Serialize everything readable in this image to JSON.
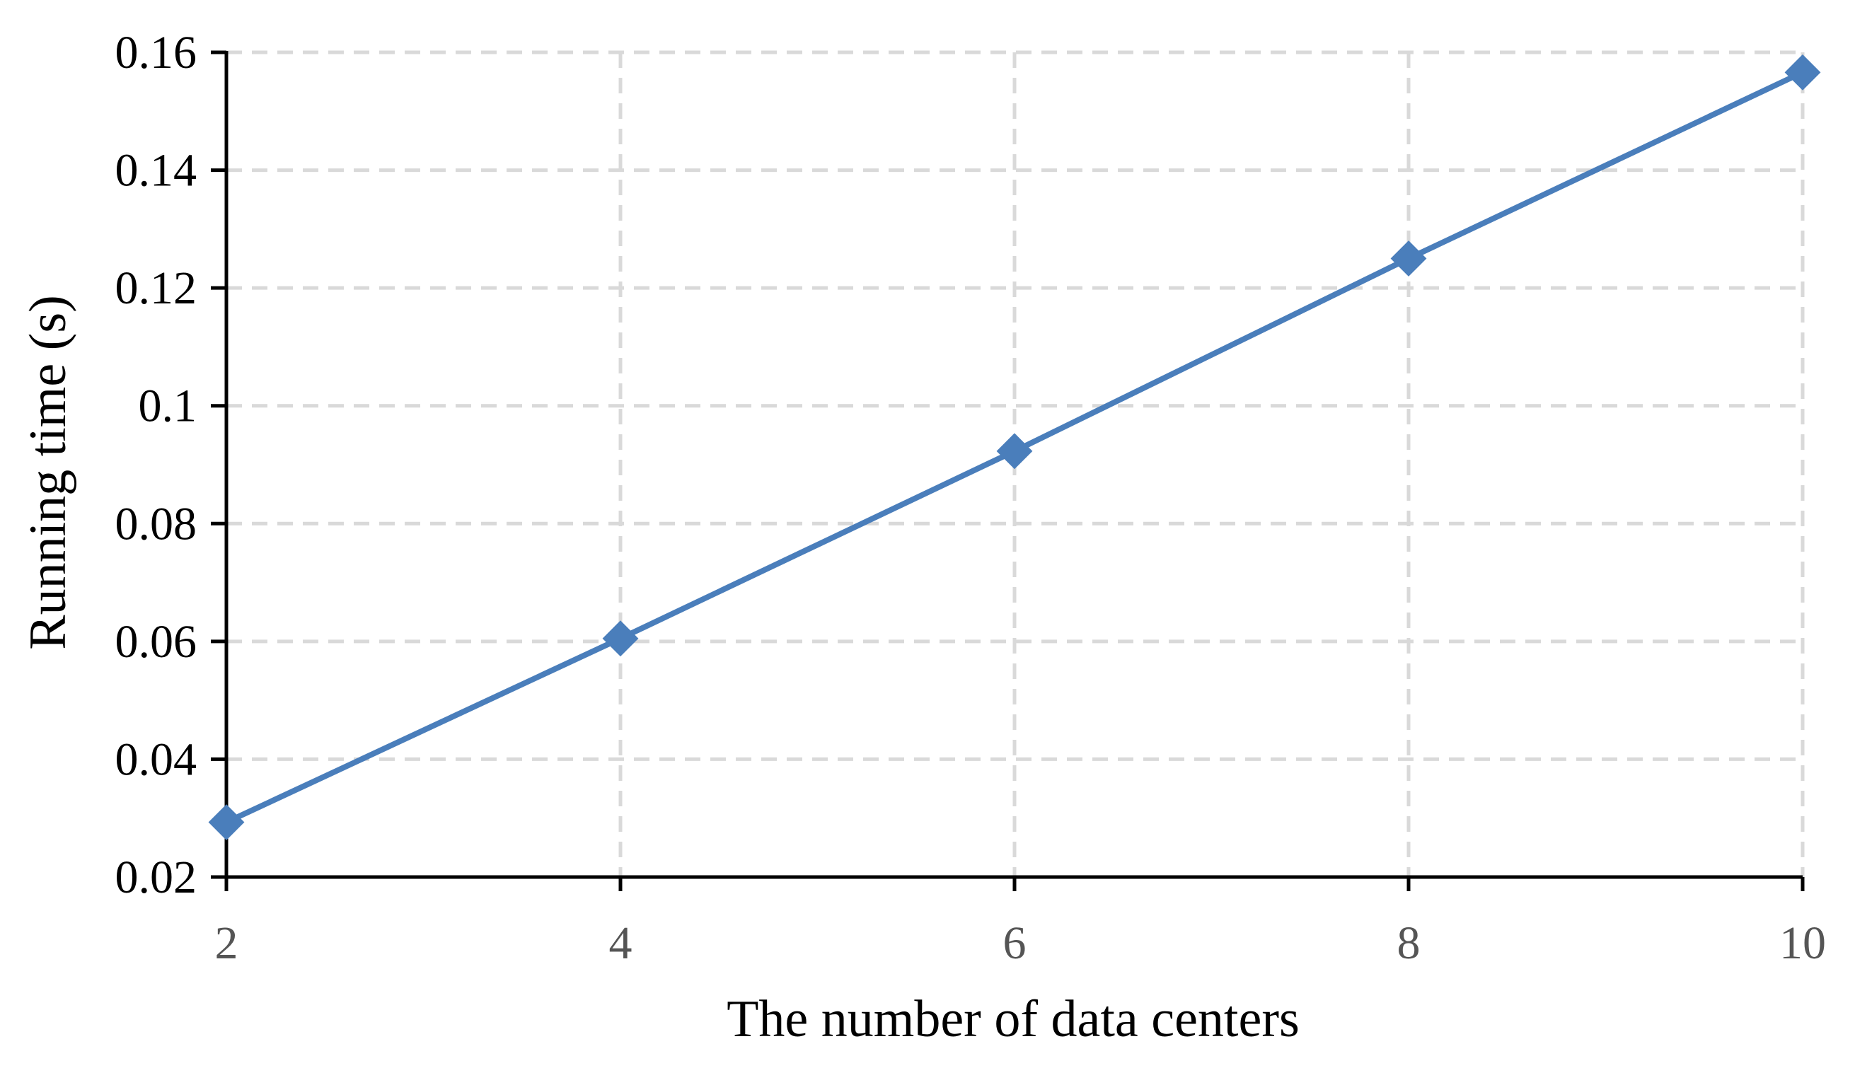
{
  "chart_data": {
    "type": "line",
    "title": "",
    "xlabel": "The number of data centers",
    "ylabel": "Running time (s)",
    "x": [
      2,
      4,
      6,
      8,
      10
    ],
    "xticks": [
      "2",
      "4",
      "6",
      "8",
      "10"
    ],
    "yticks": [
      "0.02",
      "0.04",
      "0.06",
      "0.08",
      "0.1",
      "0.12",
      "0.14",
      "0.16"
    ],
    "xlim": [
      2,
      10
    ],
    "ylim": [
      0.02,
      0.16
    ],
    "grid": true,
    "grid_style": "dashed",
    "legend": "none",
    "marker": "diamond",
    "series": [
      {
        "values": [
          0.0293,
          0.0605,
          0.0923,
          0.125,
          0.1566
        ],
        "color": "#4a7ebb"
      }
    ],
    "colors": {
      "line": "#4a7ebb",
      "grid": "#d9d9d9",
      "axis": "#000000"
    }
  }
}
